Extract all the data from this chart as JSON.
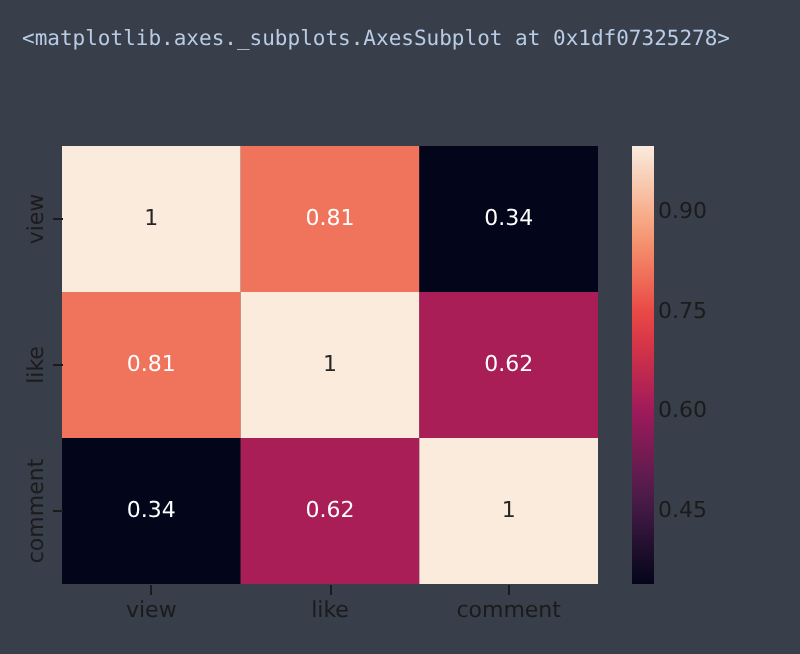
{
  "chart_data": {
    "type": "heatmap",
    "title": "<matplotlib.axes._subplots.AxesSubplot at 0x1df07325278>",
    "categories": [
      "view",
      "like",
      "comment"
    ],
    "y_categories": [
      "view",
      "like",
      "comment"
    ],
    "cells": [
      [
        1,
        0.81,
        0.34
      ],
      [
        0.81,
        1,
        0.62
      ],
      [
        0.34,
        0.62,
        1
      ]
    ],
    "clim": [
      0.34,
      1
    ],
    "cticks": [
      0.45,
      {
        "value": 0.6,
        "label": "0.60"
      },
      0.75,
      {
        "value": 0.9,
        "label": "0.90"
      }
    ],
    "data_labels": true
  }
}
